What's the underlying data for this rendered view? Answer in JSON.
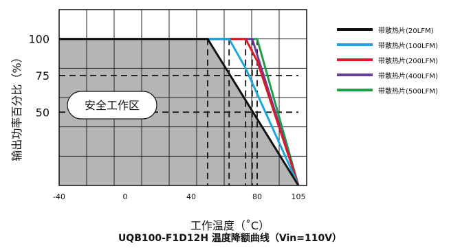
{
  "chart_data": {
    "type": "line",
    "xlabel": "工作温度（˚C）",
    "ylabel": "输出功率百分比（%）",
    "subtitle": "UQB100-F1D12H  温度降额曲线（Vin=110V）",
    "x_ticks": [
      "-40",
      "0",
      "40",
      "80",
      "105"
    ],
    "y_ticks": [
      "100",
      "75",
      "50"
    ],
    "xlim": [
      -40,
      110
    ],
    "ylim": [
      0,
      120
    ],
    "grid": true,
    "legend_position": "right",
    "annotation": "安全工作区",
    "series": [
      {
        "name": "带散热片(20LFM)",
        "color": "#111111",
        "x": [
          -40,
          50,
          105
        ],
        "y": [
          100,
          100,
          0
        ]
      },
      {
        "name": "带散热片(100LFM)",
        "color": "#1ea6e0",
        "x": [
          -40,
          63,
          73,
          105
        ],
        "y": [
          100,
          100,
          80,
          0
        ]
      },
      {
        "name": "带散热片(200LFM)",
        "color": "#d81b24",
        "x": [
          -40,
          73,
          80,
          105
        ],
        "y": [
          100,
          100,
          85,
          0
        ]
      },
      {
        "name": "带散热片(400LFM)",
        "color": "#6a3d9a",
        "x": [
          -40,
          77,
          105
        ],
        "y": [
          100,
          100,
          0
        ]
      },
      {
        "name": "带散热片(500LFM)",
        "color": "#1f9e4a",
        "x": [
          -40,
          80,
          105
        ],
        "y": [
          100,
          100,
          0
        ]
      }
    ]
  }
}
